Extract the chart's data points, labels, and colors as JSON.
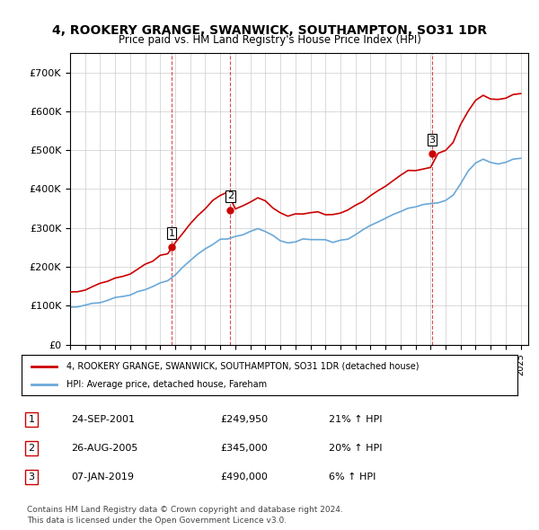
{
  "title": "4, ROOKERY GRANGE, SWANWICK, SOUTHAMPTON, SO31 1DR",
  "subtitle": "Price paid vs. HM Land Registry's House Price Index (HPI)",
  "legend_line1": "4, ROOKERY GRANGE, SWANWICK, SOUTHAMPTON, SO31 1DR (detached house)",
  "legend_line2": "HPI: Average price, detached house, Fareham",
  "transactions": [
    {
      "num": 1,
      "date": "24-SEP-2001",
      "price": 249950,
      "pct": "21%",
      "dir": "↑"
    },
    {
      "num": 2,
      "date": "26-AUG-2005",
      "price": 345000,
      "pct": "20%",
      "dir": "↑"
    },
    {
      "num": 3,
      "date": "07-JAN-2019",
      "price": 490000,
      "pct": "6%",
      "dir": "↑"
    }
  ],
  "footnote1": "Contains HM Land Registry data © Crown copyright and database right 2024.",
  "footnote2": "This data is licensed under the Open Government Licence v3.0.",
  "hpi_color": "#6aa8d8",
  "price_color": "#cc0000",
  "background_color": "#ffffff",
  "plot_bg_color": "#ffffff",
  "grid_color": "#cccccc",
  "ylim": [
    0,
    750000
  ],
  "yticks": [
    0,
    100000,
    200000,
    300000,
    400000,
    500000,
    600000,
    700000
  ],
  "xlim_start": 1995.0,
  "xlim_end": 2025.5
}
